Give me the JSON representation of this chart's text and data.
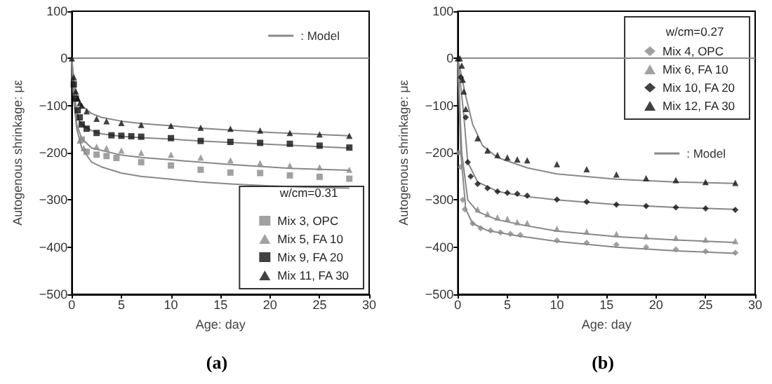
{
  "chart_data": [
    {
      "type": "scatter",
      "xlabel": "Age: day",
      "ylabel": "Autogenous shrinkage: με",
      "legend_title": "w/cm=0.31",
      "legend": "bottom right",
      "xlim": [
        0,
        30
      ],
      "ylim": [
        -500,
        100
      ],
      "xticks": [
        0,
        5,
        10,
        15,
        20,
        25,
        30
      ],
      "yticks": [
        -500,
        -400,
        -300,
        -200,
        -100,
        0,
        100
      ],
      "ref_lines": [
        {
          "axis": "y",
          "value": 0,
          "color": "#888888"
        }
      ],
      "annotations": [
        "(a)"
      ],
      "series": [
        {
          "name": "Mix 3, OPC",
          "marker": "square",
          "color": "#8a8a8a",
          "x": [
            1,
            1.5,
            2.5,
            3.5,
            4.5,
            7,
            10,
            13,
            16,
            19,
            22,
            25,
            28
          ],
          "values": [
            -172,
            -198,
            -204,
            -207,
            -211,
            -220,
            -227,
            -236,
            -242,
            -243,
            -248,
            -251,
            -255
          ]
        },
        {
          "name": "Mix 5, FA 10",
          "marker": "triangle",
          "color": "#8a8a8a",
          "x": [
            0.8,
            1.2,
            2.5,
            3.5,
            5,
            7,
            10,
            13,
            16,
            19,
            22,
            25,
            28
          ],
          "values": [
            -174,
            -190,
            -187,
            -190,
            -195,
            -200,
            -204,
            -210,
            -216,
            -222,
            -227,
            -231,
            -236
          ]
        },
        {
          "name": "Mix 9, FA 20",
          "marker": "square",
          "color": "#111111",
          "x": [
            0.2,
            0.4,
            0.6,
            0.8,
            1,
            1.5,
            2.5,
            4,
            5,
            6,
            7,
            10,
            13,
            16,
            19,
            22,
            25,
            28
          ],
          "values": [
            -55,
            -85,
            -110,
            -125,
            -140,
            -149,
            -158,
            -163,
            -164,
            -165,
            -166,
            -169,
            -175,
            -177,
            -179,
            -181,
            -185,
            -189
          ]
        },
        {
          "name": "Mix 11, FA 30",
          "marker": "triangle",
          "color": "#111111",
          "x": [
            0,
            0.2,
            0.4,
            0.6,
            0.8,
            1,
            1.5,
            2.5,
            3.5,
            5,
            7,
            10,
            13,
            16,
            19,
            22,
            25,
            28
          ],
          "values": [
            0,
            -40,
            -70,
            -85,
            -95,
            -100,
            -112,
            -128,
            -133,
            -137,
            -141,
            -143,
            -147,
            -149,
            -153,
            -158,
            -161,
            -164
          ]
        },
        {
          "name": ": Model",
          "type": "line",
          "color": "#888888",
          "x": [
            0,
            0.2,
            0.5,
            1,
            2,
            3,
            5,
            7,
            10,
            13,
            16,
            20,
            24,
            28
          ],
          "values": [
            0,
            -90,
            -150,
            -190,
            -220,
            -230,
            -243,
            -250,
            -256,
            -262,
            -266,
            -270,
            -273,
            -275
          ]
        },
        {
          "type": "line",
          "color": "#888888",
          "x": [
            0,
            0.2,
            0.5,
            1,
            2,
            5,
            7,
            10,
            16,
            22,
            28
          ],
          "values": [
            0,
            -85,
            -140,
            -170,
            -190,
            -205,
            -210,
            -215,
            -225,
            -233,
            -237
          ]
        },
        {
          "type": "line",
          "color": "#888888",
          "x": [
            0,
            0.2,
            0.4,
            0.7,
            1,
            2,
            3,
            5,
            7,
            10,
            13,
            20,
            28
          ],
          "values": [
            0,
            -60,
            -100,
            -130,
            -140,
            -153,
            -160,
            -165,
            -168,
            -171,
            -175,
            -182,
            -190
          ]
        },
        {
          "type": "line",
          "color": "#888888",
          "x": [
            0,
            0.2,
            0.5,
            1,
            2,
            3,
            5,
            7,
            10,
            13,
            20,
            28
          ],
          "values": [
            0,
            -45,
            -80,
            -100,
            -117,
            -125,
            -133,
            -138,
            -143,
            -148,
            -157,
            -164
          ]
        }
      ]
    },
    {
      "type": "scatter",
      "xlabel": "Age: day",
      "ylabel": "Autogenous shrinkage: με",
      "legend_title": "w/cm=0.27",
      "legend": "top right",
      "xlim": [
        0,
        30
      ],
      "ylim": [
        -500,
        100
      ],
      "xticks": [
        0,
        5,
        10,
        15,
        20,
        25,
        30
      ],
      "yticks": [
        -500,
        -400,
        -300,
        -200,
        -100,
        0,
        100
      ],
      "ref_lines": [
        {
          "axis": "y",
          "value": 0,
          "color": "#888888"
        }
      ],
      "annotations": [
        "(b)"
      ],
      "series": [
        {
          "name": "Mix 4, OPC",
          "marker": "diamond",
          "color": "#8a8a8a",
          "x": [
            0.1,
            0.3,
            0.5,
            0.7,
            1.5,
            2.3,
            3.3,
            4.3,
            5.3,
            6.3,
            10,
            13,
            16,
            19,
            22,
            25,
            28
          ],
          "values": [
            -200,
            -230,
            -300,
            -320,
            -350,
            -360,
            -365,
            -369,
            -372,
            -374,
            -386,
            -391,
            -395,
            -400,
            -405,
            -409,
            -412
          ]
        },
        {
          "name": "Mix 6, FA 10",
          "marker": "triangle",
          "color": "#8a8a8a",
          "x": [
            2,
            3,
            4,
            5,
            6,
            7,
            10,
            13,
            16,
            19,
            22,
            25,
            28
          ],
          "values": [
            -320,
            -330,
            -337,
            -340,
            -347,
            -349,
            -361,
            -367,
            -372,
            -377,
            -380,
            -384,
            -387
          ]
        },
        {
          "name": "Mix 10, FA 20",
          "marker": "diamond",
          "color": "#111111",
          "x": [
            0.3,
            0.8,
            1,
            1.3,
            2,
            3,
            4,
            5,
            6,
            7,
            10,
            13,
            16,
            19,
            22,
            25,
            28
          ],
          "values": [
            -40,
            -125,
            -220,
            -250,
            -266,
            -275,
            -282,
            -285,
            -287,
            -291,
            -299,
            -304,
            -310,
            -313,
            -316,
            -318,
            -321
          ]
        },
        {
          "name": "Mix 12, FA 30",
          "marker": "triangle",
          "color": "#111111",
          "x": [
            0,
            0.2,
            0.4,
            0.5,
            0.6,
            0.8,
            2,
            3,
            4,
            5,
            6,
            7,
            10,
            13,
            16,
            19,
            22,
            25,
            28
          ],
          "values": [
            0,
            0,
            -15,
            -45,
            -70,
            -107,
            -169,
            -195,
            -205,
            -210,
            -214,
            -216,
            -224,
            -235,
            -246,
            -254,
            -258,
            -262,
            -264
          ]
        },
        {
          "name": ": Model",
          "type": "line",
          "color": "#888888",
          "x": [
            0,
            0.3,
            0.8,
            1.5,
            3,
            6,
            10,
            16,
            22,
            28
          ],
          "values": [
            0,
            -200,
            -320,
            -350,
            -365,
            -376,
            -388,
            -400,
            -408,
            -413
          ]
        },
        {
          "type": "line",
          "color": "#888888",
          "x": [
            0,
            0.4,
            1,
            2,
            4,
            7,
            10,
            16,
            22,
            28
          ],
          "values": [
            0,
            -200,
            -300,
            -325,
            -342,
            -355,
            -366,
            -378,
            -385,
            -390
          ]
        },
        {
          "type": "line",
          "color": "#888888",
          "x": [
            0,
            0.6,
            1,
            2,
            4,
            7,
            10,
            16,
            22,
            28
          ],
          "values": [
            0,
            -120,
            -220,
            -262,
            -282,
            -293,
            -300,
            -310,
            -316,
            -320
          ]
        },
        {
          "type": "line",
          "color": "#888888",
          "x": [
            0,
            0.8,
            1.5,
            2.5,
            4,
            7,
            10,
            16,
            22,
            28
          ],
          "values": [
            0,
            -80,
            -140,
            -185,
            -210,
            -232,
            -245,
            -256,
            -262,
            -265
          ]
        }
      ]
    }
  ]
}
